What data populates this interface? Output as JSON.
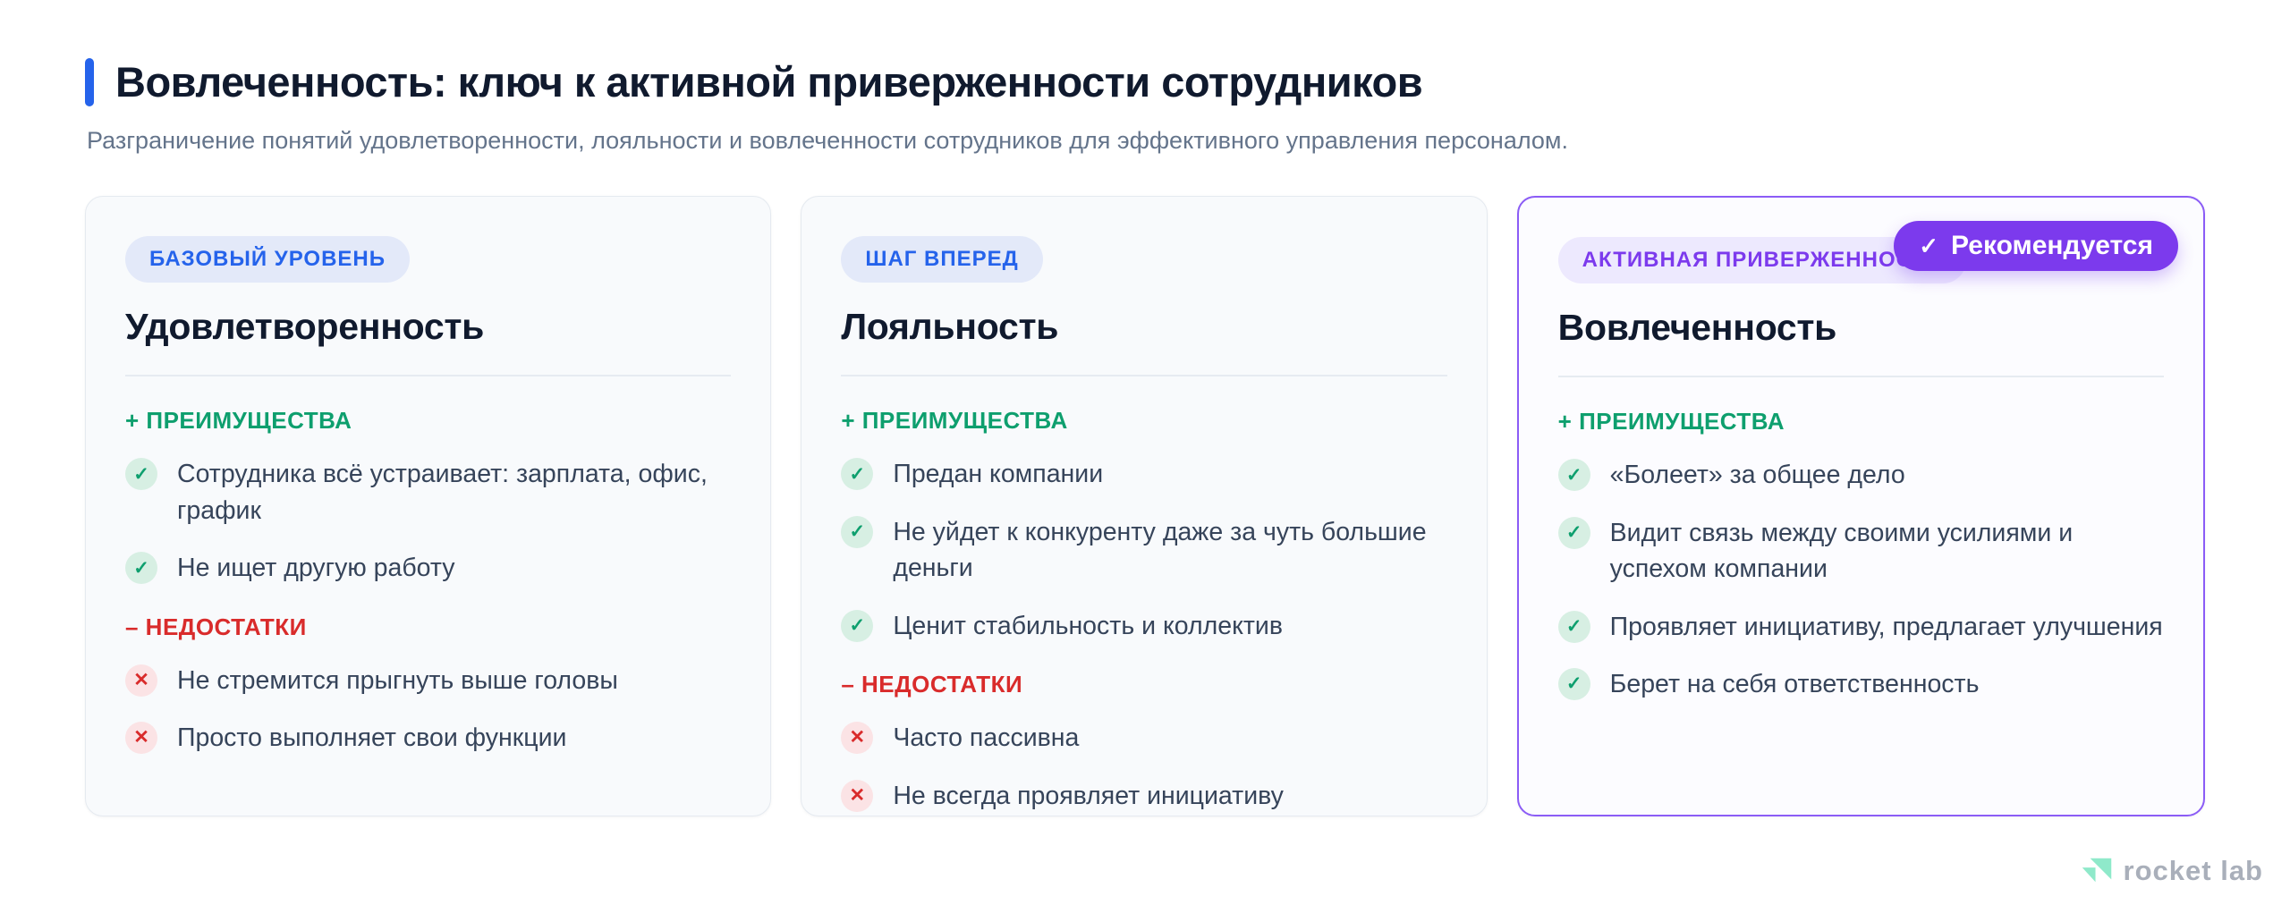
{
  "page": {
    "title": "Вовлеченность: ключ к активной приверженности сотрудников",
    "subtitle": "Разграничение понятий удовлетворенности, лояльности и вовлеченности сотрудников для эффективного управления персоналом."
  },
  "labels": {
    "pros": "+ ПРЕИМУЩЕСТВА",
    "cons": "– НЕДОСТАТКИ"
  },
  "icons": {
    "check": "✓",
    "cross": "✕",
    "ribbon_check": "✓"
  },
  "cards": [
    {
      "badge": "БАЗОВЫЙ УРОВЕНЬ",
      "title": "Удовлетворенность",
      "pros": [
        "Сотрудника всё устраивает: зарплата, офис, график",
        "Не ищет другую работу"
      ],
      "cons": [
        "Не стремится прыгнуть выше головы",
        "Просто выполняет свои функции"
      ],
      "recommended": false
    },
    {
      "badge": "ШАГ ВПЕРЕД",
      "title": "Лояльность",
      "pros": [
        "Предан компании",
        "Не уйдет к конкуренту даже за чуть большие деньги",
        "Ценит стабильность и коллектив"
      ],
      "cons": [
        "Часто пассивна",
        "Не всегда проявляет инициативу"
      ],
      "recommended": false
    },
    {
      "badge": "АКТИВНАЯ ПРИВЕРЖЕННОСТЬ",
      "title": "Вовлеченность",
      "pros": [
        "«Болеет» за общее дело",
        "Видит связь между своими усилиями и успехом компании",
        "Проявляет инициативу, предлагает улучшения",
        "Берет на себя ответственность"
      ],
      "cons": [],
      "recommended": true,
      "ribbon": "Рекомендуется"
    }
  ],
  "footer": {
    "logo_text": "rocket lab"
  },
  "colors": {
    "accent_blue": "#2563EB",
    "badge_blue_bg": "#E3E9F9",
    "title_ink": "#101A2E",
    "subtitle_gray": "#64748B",
    "body_text": "#36445A",
    "green": "#0E9F6E",
    "green_icon_bg": "#D7EFE3",
    "red": "#D92B2B",
    "red_icon_bg": "#FBE3E5",
    "purple": "#7C3AED",
    "purple_badge_bg": "#EDE9FE",
    "purple_border": "#8B5CF6",
    "card_bg": "#F8FAFC",
    "card_border": "#E5EAF0",
    "card3_bg": "#FCFCFF",
    "logo_gray": "#A9AFBA",
    "logo_mint": "#8FE9CA"
  }
}
